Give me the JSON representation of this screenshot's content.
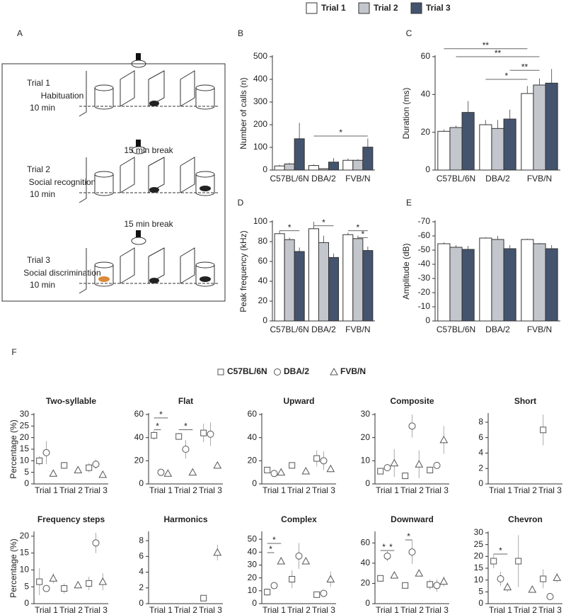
{
  "diagram": {
    "panel": "A",
    "steps": [
      {
        "trial": "Trial 1",
        "phase": "Habituation",
        "duration": "10 min"
      },
      {
        "trial": "Trial 2",
        "phase": "Social recognition",
        "duration": "10 min"
      },
      {
        "trial": "Trial 3",
        "phase": "Social discrimination",
        "duration": "10 min"
      }
    ],
    "breaks": [
      "15 min break",
      "15 min break"
    ]
  },
  "chart_data": [
    {
      "type": "bar",
      "panel": "B",
      "ylabel": "Number of calls (n)",
      "categories": [
        "C57BL/6N",
        "DBA/2",
        "FVB/N"
      ],
      "series": [
        {
          "name": "Trial 1",
          "color": "#ffffff",
          "values": [
            18,
            20,
            43
          ],
          "errors": [
            5,
            5,
            8
          ]
        },
        {
          "name": "Trial 2",
          "color": "#c3c6cc",
          "values": [
            27,
            6,
            43
          ],
          "errors": [
            5,
            2,
            5
          ]
        },
        {
          "name": "Trial 3",
          "color": "#44546e",
          "values": [
            138,
            35,
            101
          ],
          "errors": [
            70,
            18,
            38
          ]
        }
      ],
      "ylim": [
        0,
        500
      ],
      "yticks": [
        0,
        100,
        200,
        300,
        400,
        500
      ],
      "annotations": [
        "*"
      ]
    },
    {
      "type": "bar",
      "panel": "C",
      "ylabel": "Duration (ms)",
      "categories": [
        "C57BL/6N",
        "DBA/2",
        "FVB/N"
      ],
      "series": [
        {
          "name": "Trial 1",
          "color": "#ffffff",
          "values": [
            20.5,
            24,
            40.5
          ],
          "errors": [
            1,
            2.5,
            4
          ]
        },
        {
          "name": "Trial 2",
          "color": "#c3c6cc",
          "values": [
            22.5,
            22,
            45
          ],
          "errors": [
            1,
            4.5,
            3.5
          ]
        },
        {
          "name": "Trial 3",
          "color": "#44546e",
          "values": [
            30.5,
            27,
            46
          ],
          "errors": [
            6,
            5,
            7.5
          ]
        }
      ],
      "ylim": [
        0,
        60
      ],
      "yticks": [
        0,
        20,
        40,
        60
      ],
      "annotations": [
        "**",
        "**",
        "**",
        "*"
      ]
    },
    {
      "type": "bar",
      "panel": "D",
      "ylabel": "Peak frequency (kHz)",
      "categories": [
        "C57BL/6N",
        "DBA/2",
        "FVB/N"
      ],
      "series": [
        {
          "name": "Trial 1",
          "color": "#ffffff",
          "values": [
            88,
            93,
            87
          ],
          "errors": [
            3,
            7,
            2
          ]
        },
        {
          "name": "Trial 2",
          "color": "#c3c6cc",
          "values": [
            82,
            79,
            83
          ],
          "errors": [
            2,
            7,
            3
          ]
        },
        {
          "name": "Trial 3",
          "color": "#44546e",
          "values": [
            70,
            64,
            71
          ],
          "errors": [
            4,
            4,
            4
          ]
        }
      ],
      "ylim": [
        0,
        100
      ],
      "yticks": [
        0,
        20,
        40,
        60,
        80,
        100
      ],
      "annotations": [
        "*",
        "*",
        "*",
        "*"
      ]
    },
    {
      "type": "bar",
      "panel": "E",
      "ylabel": "Amplitude (dB)",
      "categories": [
        "C57BL/6N",
        "DBA/2",
        "FVB/N"
      ],
      "series": [
        {
          "name": "Trial 1",
          "color": "#ffffff",
          "values": [
            -54.5,
            -58.5,
            -57.5
          ],
          "errors": [
            1,
            0.5,
            0.5
          ]
        },
        {
          "name": "Trial 2",
          "color": "#c3c6cc",
          "values": [
            -52,
            -57.5,
            -54.5
          ],
          "errors": [
            1.5,
            2.5,
            0.5
          ]
        },
        {
          "name": "Trial 3",
          "color": "#44546e",
          "values": [
            -50.5,
            -51,
            -51
          ],
          "errors": [
            2.5,
            2.5,
            2.5
          ]
        }
      ],
      "ylim": [
        0,
        -70
      ],
      "yticks": [
        0,
        -10,
        -20,
        -30,
        -40,
        -50,
        -60,
        -70
      ],
      "annotations": []
    },
    {
      "type": "scatter",
      "panel": "F",
      "title": "Two-syllable",
      "ylabel": "Percentage (%)",
      "categories": [
        "Trial 1",
        "Trial 2",
        "Trial 3"
      ],
      "series": [
        {
          "name": "C57BL/6N",
          "marker": "square",
          "color": "#555555",
          "values": [
            10,
            8,
            7
          ],
          "errors": [
            2,
            1.5,
            2
          ]
        },
        {
          "name": "DBA/2",
          "marker": "circle",
          "color": "#555555",
          "values": [
            13.5,
            null,
            8.5
          ],
          "errors": [
            5,
            null,
            2
          ]
        },
        {
          "name": "FVB/N",
          "marker": "triangle",
          "color": "#555555",
          "values": [
            4.5,
            6,
            4
          ],
          "errors": [
            1,
            1,
            1
          ]
        }
      ],
      "ylim": [
        0,
        30
      ],
      "yticks": [
        0,
        5,
        10,
        15,
        20,
        25,
        30
      ],
      "annotations": []
    },
    {
      "type": "scatter",
      "title": "Flat",
      "categories": [
        "Trial 1",
        "Trial 2",
        "Trial 3"
      ],
      "series": [
        {
          "name": "C57BL/6N",
          "marker": "square",
          "color": "#555555",
          "values": [
            42,
            41,
            44
          ],
          "errors": [
            4,
            3,
            8
          ]
        },
        {
          "name": "DBA/2",
          "marker": "circle",
          "color": "#555555",
          "values": [
            10,
            30,
            43
          ],
          "errors": [
            2,
            8,
            10
          ]
        },
        {
          "name": "FVB/N",
          "marker": "triangle",
          "color": "#555555",
          "values": [
            9,
            10,
            16
          ],
          "errors": [
            1,
            1,
            2
          ]
        }
      ],
      "ylim": [
        0,
        60
      ],
      "yticks": [
        0,
        20,
        40,
        60
      ],
      "annotations": [
        "*",
        "*",
        "*"
      ]
    },
    {
      "type": "scatter",
      "title": "Upward",
      "categories": [
        "Trial 1",
        "Trial 2",
        "Trial 3"
      ],
      "series": [
        {
          "name": "C57BL/6N",
          "marker": "square",
          "color": "#555555",
          "values": [
            12,
            16,
            22
          ],
          "errors": [
            2,
            2,
            7
          ]
        },
        {
          "name": "DBA/2",
          "marker": "circle",
          "color": "#555555",
          "values": [
            9,
            null,
            20
          ],
          "errors": [
            2,
            null,
            8
          ]
        },
        {
          "name": "FVB/N",
          "marker": "triangle",
          "color": "#555555",
          "values": [
            10,
            11,
            13
          ],
          "errors": [
            1,
            1,
            3
          ]
        }
      ],
      "ylim": [
        0,
        60
      ],
      "yticks": [
        0,
        20,
        40,
        60
      ],
      "annotations": []
    },
    {
      "type": "scatter",
      "title": "Composite",
      "categories": [
        "Trial 1",
        "Trial 2",
        "Trial 3"
      ],
      "series": [
        {
          "name": "C57BL/6N",
          "marker": "square",
          "color": "#555555",
          "values": [
            5.5,
            3.5,
            6
          ],
          "errors": [
            1,
            0.5,
            1.5
          ]
        },
        {
          "name": "DBA/2",
          "marker": "circle",
          "color": "#555555",
          "values": [
            7,
            25,
            8
          ],
          "errors": [
            1.5,
            5,
            1
          ]
        },
        {
          "name": "FVB/N",
          "marker": "triangle",
          "color": "#555555",
          "values": [
            9,
            8.5,
            19
          ],
          "errors": [
            6,
            6,
            6
          ]
        }
      ],
      "ylim": [
        0,
        30
      ],
      "yticks": [
        0,
        10,
        20,
        30
      ],
      "annotations": []
    },
    {
      "type": "scatter",
      "title": "Short",
      "categories": [
        "Trial 1",
        "Trial 2",
        "Trial 3"
      ],
      "series": [
        {
          "name": "C57BL/6N",
          "marker": "square",
          "color": "#555555",
          "values": [
            null,
            null,
            7
          ],
          "errors": [
            null,
            null,
            2
          ]
        }
      ],
      "ylim": [
        0,
        9
      ],
      "yticks": [
        0,
        2,
        4,
        6,
        8
      ],
      "annotations": []
    },
    {
      "type": "scatter",
      "title": "Frequency steps",
      "ylabel": "Percentage (%)",
      "categories": [
        "Trial 1",
        "Trial 2",
        "Trial 3"
      ],
      "series": [
        {
          "name": "C57BL/6N",
          "marker": "square",
          "color": "#555555",
          "values": [
            6.5,
            4.5,
            6
          ],
          "errors": [
            4,
            1.5,
            2
          ]
        },
        {
          "name": "DBA/2",
          "marker": "circle",
          "color": "#555555",
          "values": [
            4.5,
            null,
            18
          ],
          "errors": [
            0.5,
            null,
            3
          ]
        },
        {
          "name": "FVB/N",
          "marker": "triangle",
          "color": "#555555",
          "values": [
            7.5,
            5.5,
            6.5
          ],
          "errors": [
            1.5,
            1,
            2.5
          ]
        }
      ],
      "ylim": [
        0,
        21
      ],
      "yticks": [
        0,
        5,
        10,
        15,
        20
      ],
      "annotations": []
    },
    {
      "type": "scatter",
      "title": "Harmonics",
      "categories": [
        "Trial 1",
        "Trial 2",
        "Trial 3"
      ],
      "series": [
        {
          "name": "C57BL/6N",
          "marker": "square",
          "color": "#555555",
          "values": [
            null,
            null,
            0.7
          ],
          "errors": [
            null,
            null,
            0.2
          ]
        },
        {
          "name": "FVB/N",
          "marker": "triangle",
          "color": "#555555",
          "values": [
            null,
            null,
            6.5
          ],
          "errors": [
            null,
            null,
            1
          ]
        }
      ],
      "ylim": [
        0,
        9
      ],
      "yticks": [
        0,
        2,
        4,
        6,
        8
      ],
      "annotations": []
    },
    {
      "type": "scatter",
      "title": "Complex",
      "categories": [
        "Trial 1",
        "Trial 2",
        "Trial 3"
      ],
      "series": [
        {
          "name": "C57BL/6N",
          "marker": "square",
          "color": "#555555",
          "values": [
            9,
            19,
            7
          ],
          "errors": [
            3,
            7,
            1
          ]
        },
        {
          "name": "DBA/2",
          "marker": "circle",
          "color": "#555555",
          "values": [
            14,
            37,
            8
          ],
          "errors": [
            1,
            10,
            1
          ]
        },
        {
          "name": "FVB/N",
          "marker": "triangle",
          "color": "#555555",
          "values": [
            33,
            33,
            19
          ],
          "errors": [
            2,
            2,
            6
          ]
        }
      ],
      "ylim": [
        0,
        55
      ],
      "yticks": [
        0,
        10,
        20,
        30,
        40,
        50
      ],
      "annotations": [
        "*",
        "*"
      ]
    },
    {
      "type": "scatter",
      "title": "Downward",
      "categories": [
        "Trial 1",
        "Trial 2",
        "Trial 3"
      ],
      "series": [
        {
          "name": "C57BL/6N",
          "marker": "square",
          "color": "#555555",
          "values": [
            25,
            18,
            19
          ],
          "errors": [
            3,
            3,
            5
          ]
        },
        {
          "name": "DBA/2",
          "marker": "circle",
          "color": "#555555",
          "values": [
            47,
            51,
            18
          ],
          "errors": [
            5,
            12,
            6
          ]
        },
        {
          "name": "FVB/N",
          "marker": "triangle",
          "color": "#555555",
          "values": [
            28,
            30,
            22
          ],
          "errors": [
            2,
            2,
            5
          ]
        }
      ],
      "ylim": [
        0,
        70
      ],
      "yticks": [
        0,
        20,
        40,
        60
      ],
      "annotations": [
        "*",
        "*",
        "*"
      ]
    },
    {
      "type": "scatter",
      "title": "Chevron",
      "categories": [
        "Trial 1",
        "Trial 2",
        "Trial 3"
      ],
      "series": [
        {
          "name": "C57BL/6N",
          "marker": "square",
          "color": "#555555",
          "values": [
            18,
            18,
            10.5
          ],
          "errors": [
            3,
            11,
            4
          ]
        },
        {
          "name": "DBA/2",
          "marker": "circle",
          "color": "#555555",
          "values": [
            10.5,
            null,
            3
          ],
          "errors": [
            3,
            null,
            1
          ]
        },
        {
          "name": "FVB/N",
          "marker": "triangle",
          "color": "#555555",
          "values": [
            7,
            6,
            11
          ],
          "errors": [
            2,
            1,
            2
          ]
        }
      ],
      "ylim": [
        0,
        30
      ],
      "yticks": [
        0,
        5,
        10,
        15,
        20,
        25,
        30
      ],
      "annotations": [
        "*"
      ]
    }
  ]
}
